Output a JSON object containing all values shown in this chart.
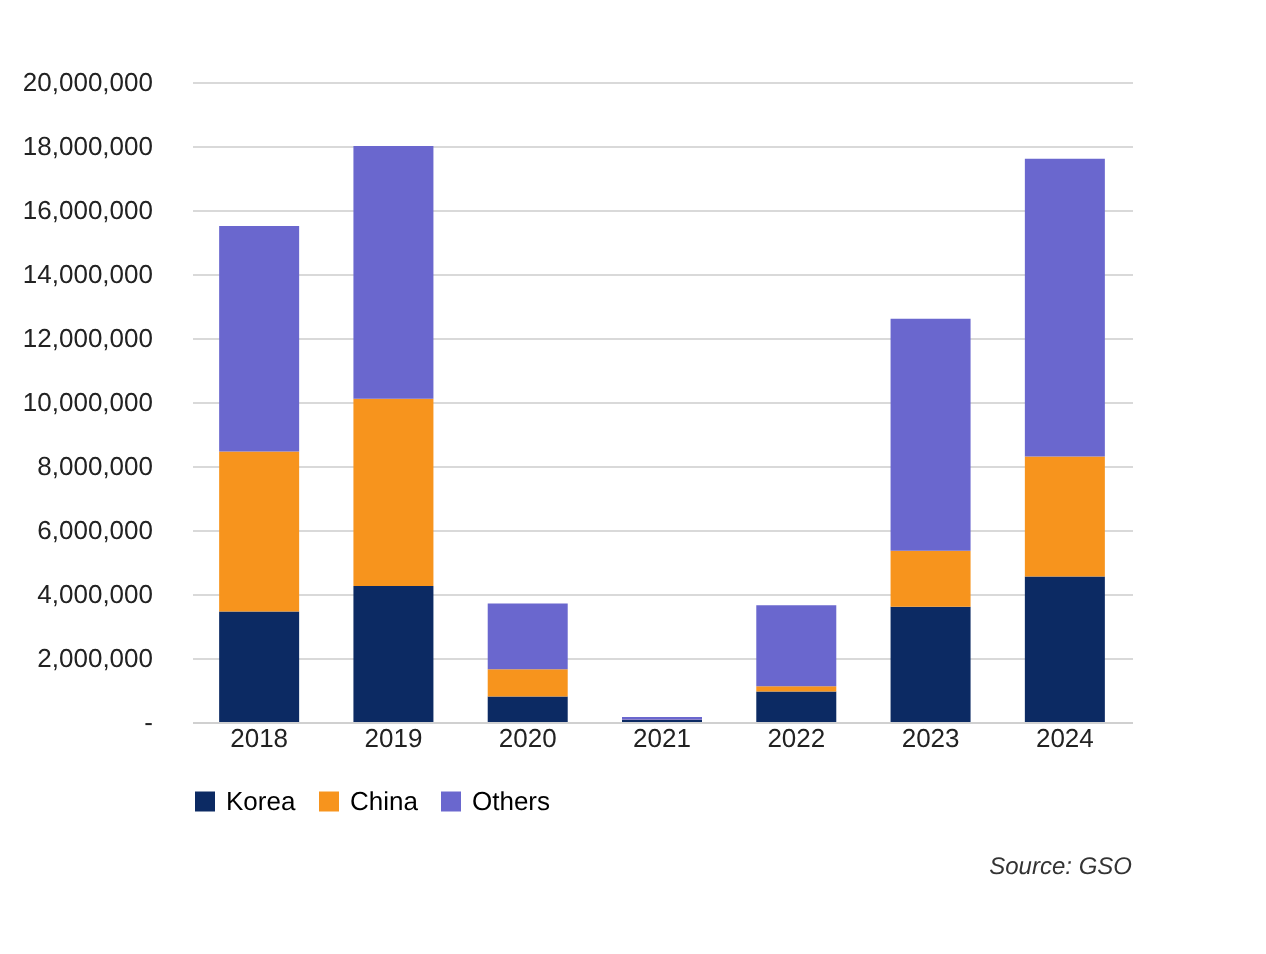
{
  "chart_data": {
    "type": "bar",
    "stacked": true,
    "categories": [
      "2018",
      "2019",
      "2020",
      "2021",
      "2022",
      "2023",
      "2024"
    ],
    "series": [
      {
        "name": "Korea",
        "color": "#0c2a63",
        "values": [
          3450000,
          4250000,
          800000,
          60000,
          950000,
          3600000,
          4550000
        ]
      },
      {
        "name": "China",
        "color": "#f7941d",
        "values": [
          5000000,
          5850000,
          850000,
          10000,
          170000,
          1750000,
          3750000
        ]
      },
      {
        "name": "Others",
        "color": "#6a67ce",
        "values": [
          7050000,
          7900000,
          2050000,
          90000,
          2530000,
          7250000,
          9300000
        ]
      }
    ],
    "ylim": [
      0,
      20000000
    ],
    "yticks": [
      {
        "value": 0,
        "label": "-"
      },
      {
        "value": 2000000,
        "label": "2,000,000"
      },
      {
        "value": 4000000,
        "label": "4,000,000"
      },
      {
        "value": 6000000,
        "label": "6,000,000"
      },
      {
        "value": 8000000,
        "label": "8,000,000"
      },
      {
        "value": 10000000,
        "label": "10,000,000"
      },
      {
        "value": 12000000,
        "label": "12,000,000"
      },
      {
        "value": 14000000,
        "label": "14,000,000"
      },
      {
        "value": 16000000,
        "label": "16,000,000"
      },
      {
        "value": 18000000,
        "label": "18,000,000"
      },
      {
        "value": 20000000,
        "label": "20,000,000"
      }
    ],
    "grid": "y",
    "legend": "bottom",
    "annotations": [
      "Source: GSO"
    ]
  }
}
